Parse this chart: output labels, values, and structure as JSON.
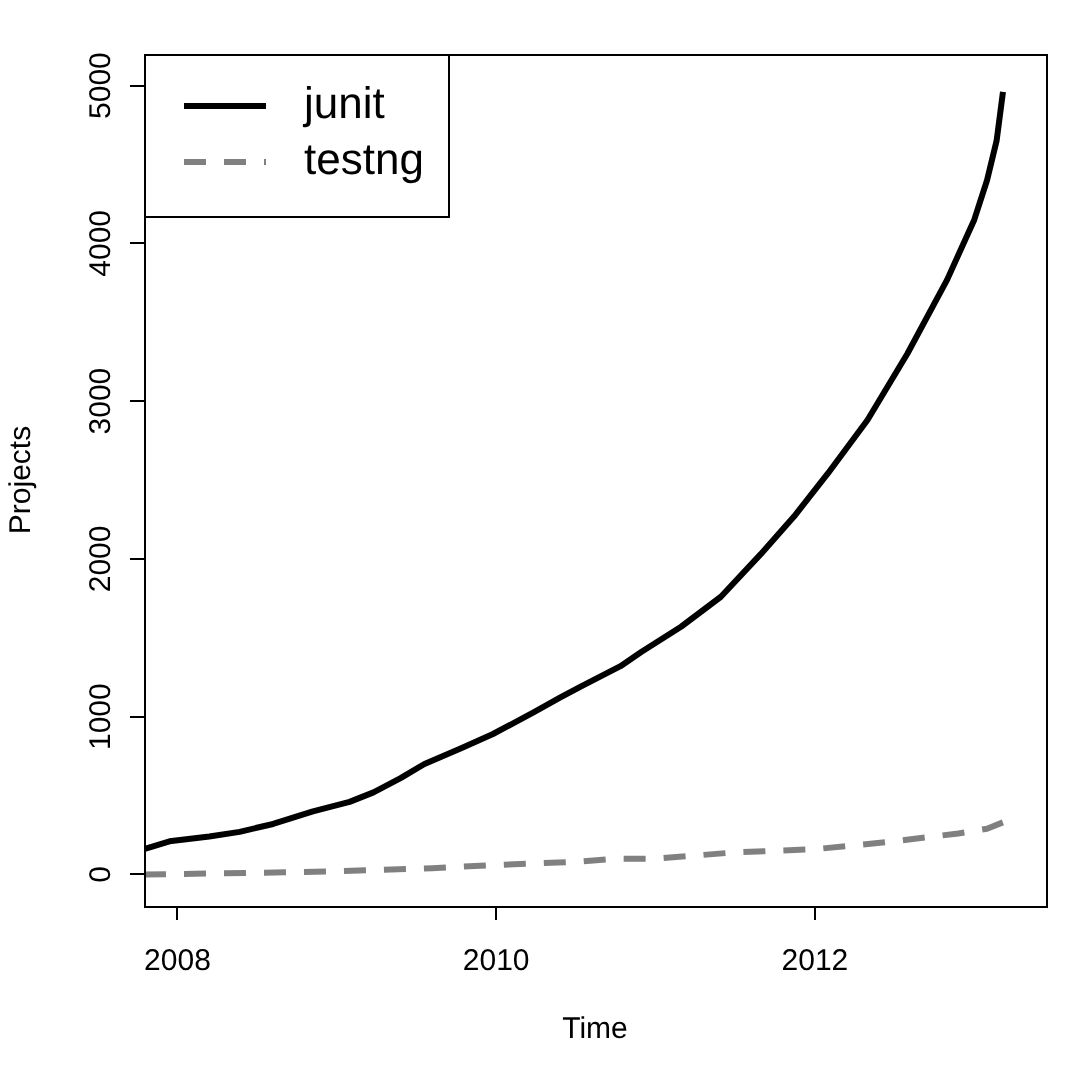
{
  "chart_data": {
    "type": "line",
    "xlabel": "Time",
    "ylabel": "Projects",
    "xlim": [
      2007.79,
      2013.45
    ],
    "xticks": [
      2008,
      2010,
      2012
    ],
    "ylim": [
      -200,
      5200
    ],
    "yticks": [
      0,
      1000,
      2000,
      3000,
      4000,
      5000
    ],
    "grid": false,
    "legend": "top left",
    "marker": "none",
    "series": [
      {
        "name": "junit",
        "color": "#000000",
        "line_style": "solid",
        "x": [
          2007.79,
          2007.95,
          2008.2,
          2008.39,
          2008.6,
          2008.85,
          2009.08,
          2009.23,
          2009.4,
          2009.55,
          2009.78,
          2009.98,
          2010.24,
          2010.4,
          2010.53,
          2010.78,
          2010.91,
          2011.16,
          2011.41,
          2011.66,
          2011.87,
          2012.08,
          2012.33,
          2012.58,
          2012.83,
          2013.0,
          2013.08,
          2013.14,
          2013.18
        ],
        "values": [
          160,
          210,
          240,
          270,
          320,
          400,
          460,
          520,
          610,
          700,
          800,
          890,
          1030,
          1120,
          1190,
          1320,
          1410,
          1570,
          1760,
          2030,
          2270,
          2540,
          2880,
          3300,
          3770,
          4150,
          4400,
          4650,
          4960
        ]
      },
      {
        "name": "testng",
        "color": "#808080",
        "line_style": "dashed",
        "x": [
          2007.79,
          2008.5,
          2009.0,
          2009.6,
          2010.0,
          2010.5,
          2010.75,
          2011.0,
          2011.5,
          2012.0,
          2012.5,
          2012.9,
          2013.08,
          2013.18
        ],
        "values": [
          0,
          10,
          20,
          40,
          60,
          80,
          100,
          100,
          140,
          160,
          210,
          260,
          290,
          330
        ]
      }
    ]
  }
}
